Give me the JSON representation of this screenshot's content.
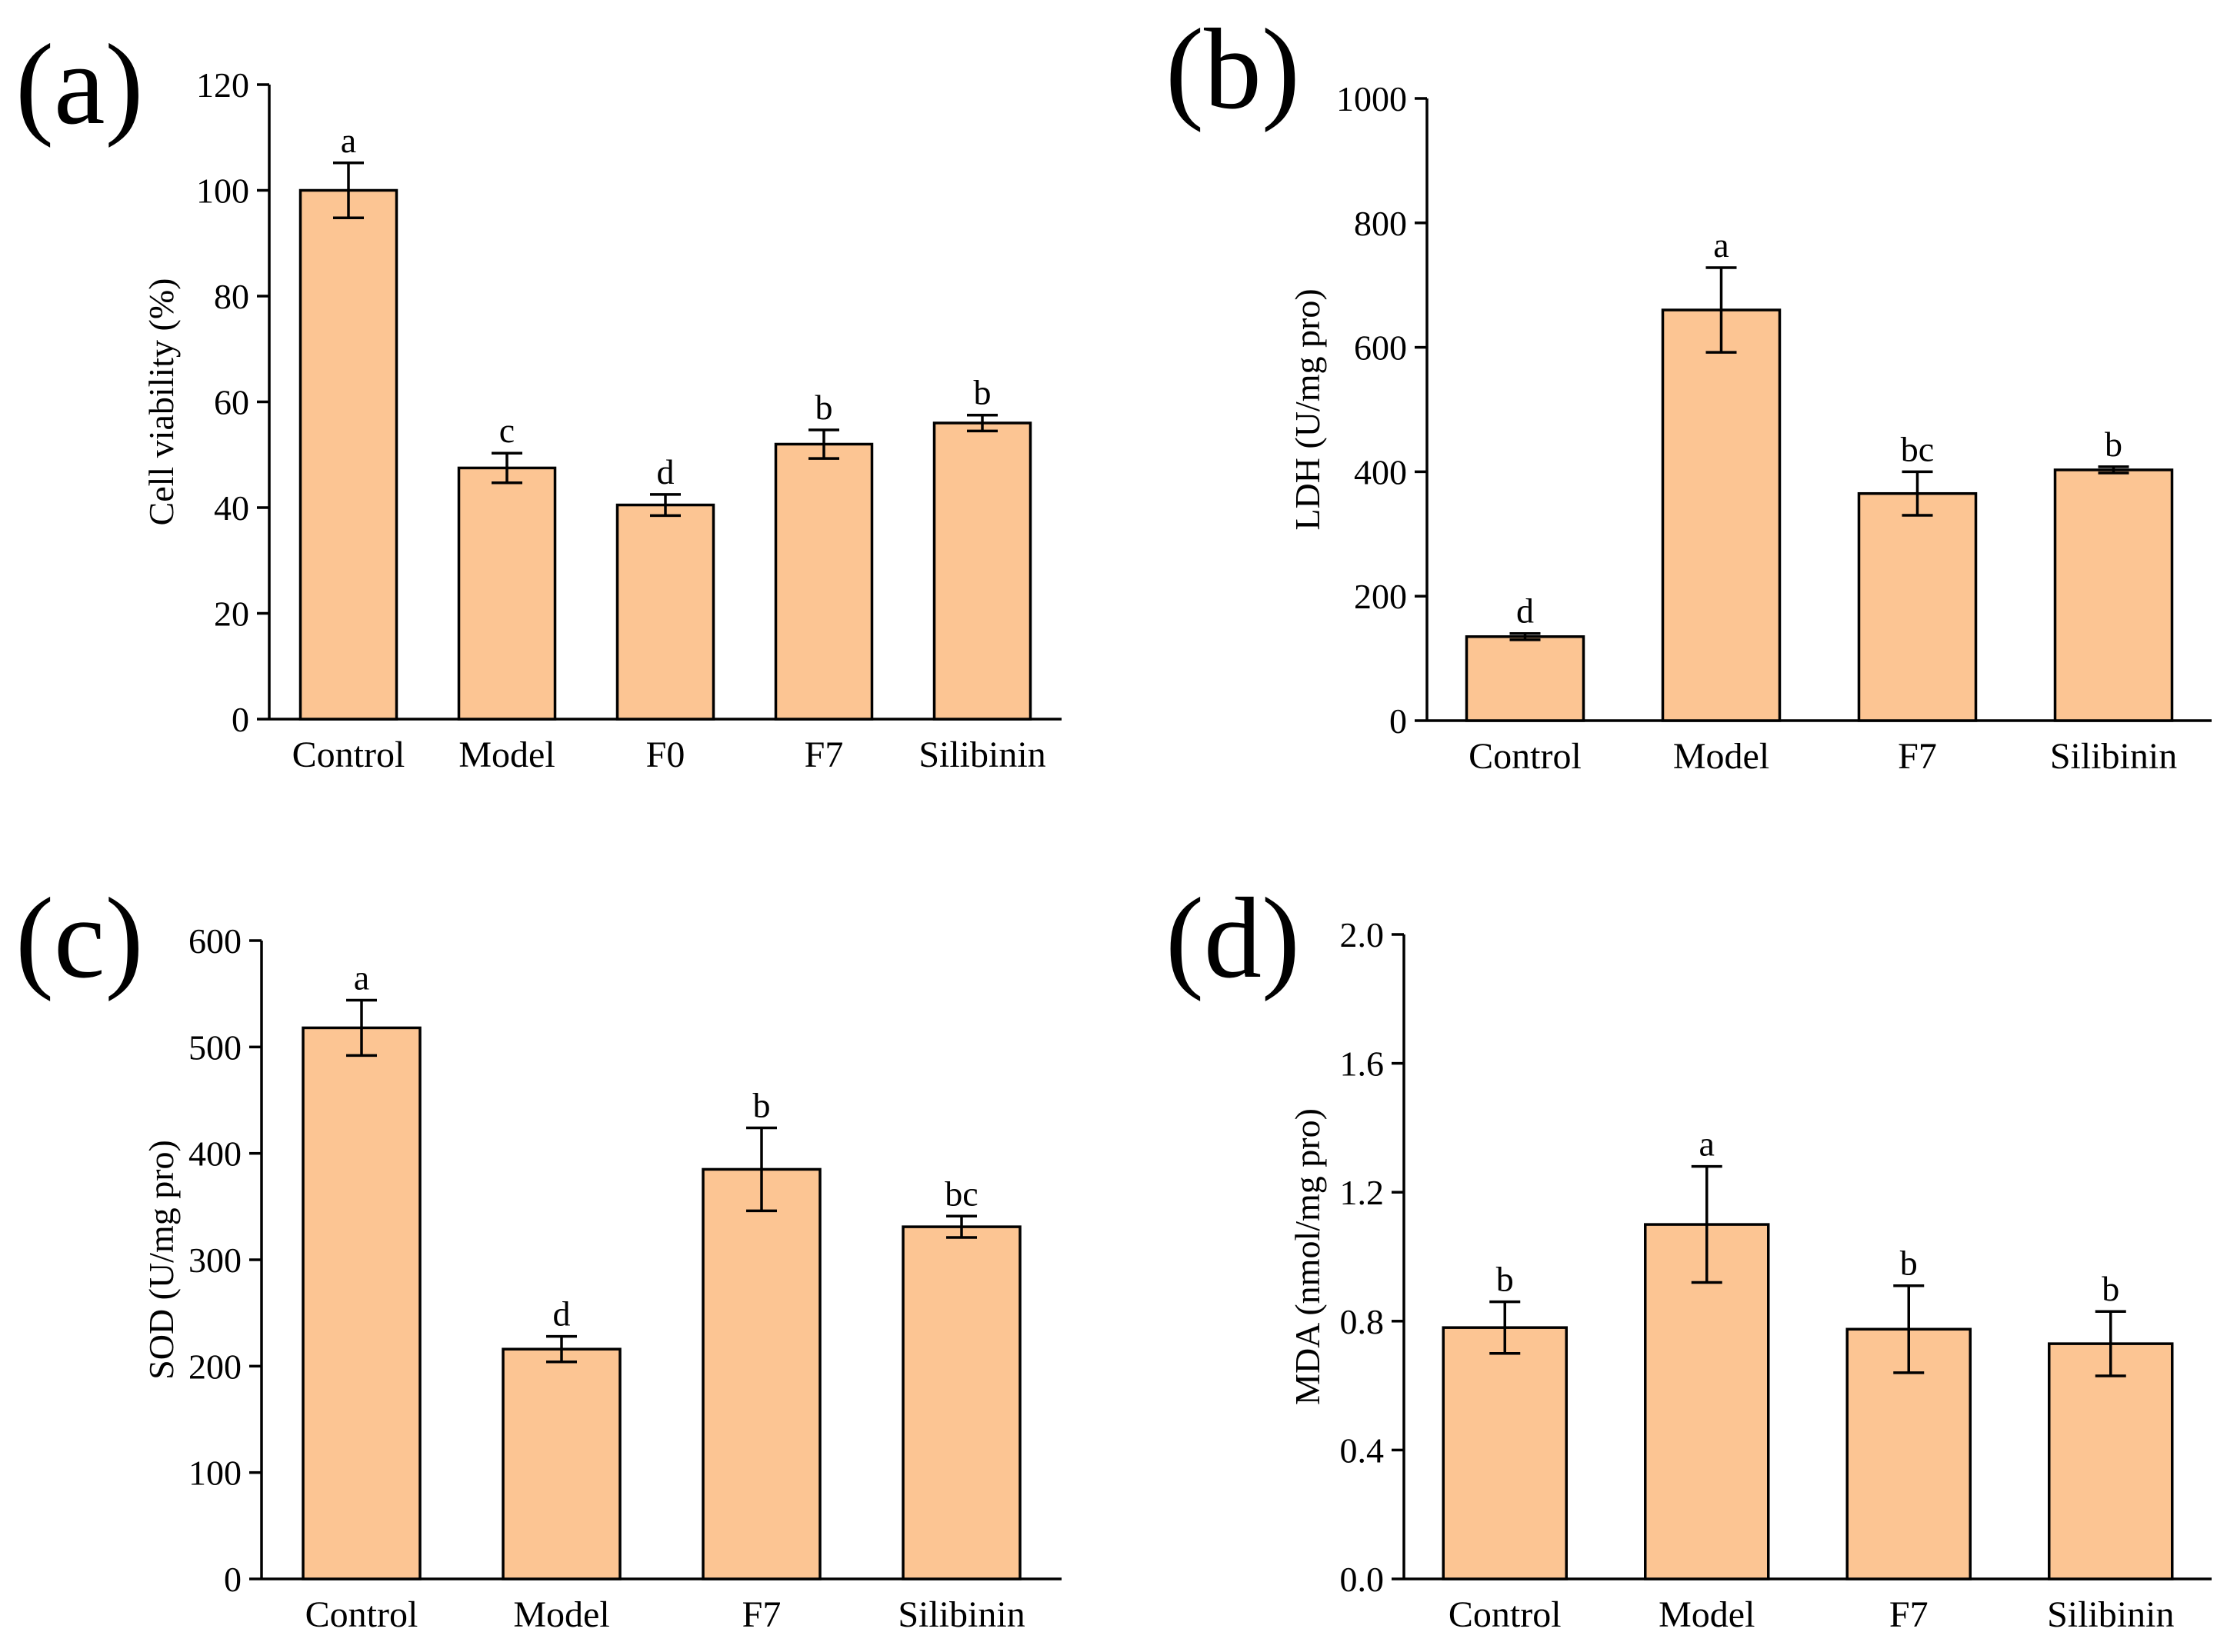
{
  "chart_data": [
    {
      "type": "bar",
      "panel_label": "(a)",
      "ylabel": "Cell viability (%)",
      "ylim": [
        0,
        120
      ],
      "yticks": [
        0,
        20,
        40,
        60,
        80,
        100,
        120
      ],
      "ytick_labels": [
        "0",
        "20",
        "40",
        "60",
        "80",
        "100",
        "120"
      ],
      "categories": [
        "Control",
        "Model",
        "F0",
        "F7",
        "Silibinin"
      ],
      "values": [
        100,
        47.5,
        40.5,
        52,
        56
      ],
      "errors": [
        5.2,
        2.8,
        2.0,
        2.7,
        1.5
      ],
      "significance": [
        "a",
        "c",
        "d",
        "b",
        "b"
      ],
      "bar_color": "#fcc593"
    },
    {
      "type": "bar",
      "panel_label": "(b)",
      "ylabel": "LDH (U/mg pro)",
      "ylim": [
        0,
        1000
      ],
      "yticks": [
        0,
        200,
        400,
        600,
        800,
        1000
      ],
      "ytick_labels": [
        "0",
        "200",
        "400",
        "600",
        "800",
        "1000"
      ],
      "categories": [
        "Control",
        "Model",
        "F7",
        "Silibinin"
      ],
      "values": [
        135,
        660,
        365,
        403
      ],
      "errors": [
        5,
        68,
        35,
        5
      ],
      "significance": [
        "d",
        "a",
        "bc",
        "b"
      ],
      "bar_color": "#fcc593"
    },
    {
      "type": "bar",
      "panel_label": "(c)",
      "ylabel": "SOD (U/mg pro)",
      "ylim": [
        0,
        600
      ],
      "yticks": [
        0,
        100,
        200,
        300,
        400,
        500,
        600
      ],
      "ytick_labels": [
        "0",
        "100",
        "200",
        "300",
        "400",
        "500",
        "600"
      ],
      "categories": [
        "Control",
        "Model",
        "F7",
        "Silibinin"
      ],
      "values": [
        518,
        216,
        385,
        331
      ],
      "errors": [
        26,
        12,
        39,
        10
      ],
      "significance": [
        "a",
        "d",
        "b",
        "bc"
      ],
      "bar_color": "#fcc593"
    },
    {
      "type": "bar",
      "panel_label": "(d)",
      "ylabel": "MDA (nmol/mg pro)",
      "ylim": [
        0,
        2.0
      ],
      "yticks": [
        0,
        0.4,
        0.8,
        1.2,
        1.6,
        2.0
      ],
      "ytick_labels": [
        "0.0",
        "0.4",
        "0.8",
        "1.2",
        "1.6",
        "2.0"
      ],
      "categories": [
        "Control",
        "Model",
        "F7",
        "Silibinin"
      ],
      "values": [
        0.78,
        1.1,
        0.775,
        0.73
      ],
      "errors": [
        0.08,
        0.18,
        0.135,
        0.1
      ],
      "significance": [
        "b",
        "a",
        "b",
        "b"
      ],
      "bar_color": "#fcc593"
    }
  ]
}
